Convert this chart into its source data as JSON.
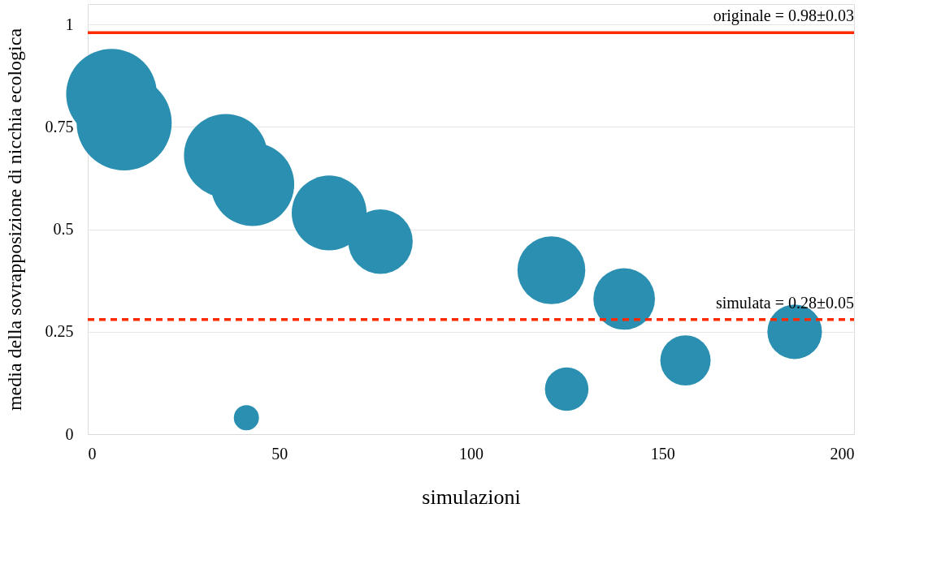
{
  "chart_data": {
    "type": "bubble",
    "xlabel": "simulazioni",
    "ylabel": "media della sovrapposizione di nicchia ecologica",
    "x": [
      6.2,
      9.5,
      36,
      43,
      63,
      76.4,
      121,
      140,
      156,
      184.5,
      125,
      41.4
    ],
    "values": [
      0.83,
      0.76,
      0.68,
      0.61,
      0.54,
      0.47,
      0.4,
      0.33,
      0.18,
      0.25,
      0.11,
      0.04
    ],
    "sizes": [
      0.91,
      1,
      0.77,
      0.77,
      0.62,
      0.46,
      0.51,
      0.42,
      0.28,
      0.33,
      0.21,
      0.07
    ],
    "color": "#2a8fb0",
    "xlim": [
      0,
      200
    ],
    "xticks": [
      0,
      50,
      100,
      150,
      200
    ],
    "ylim": [
      0,
      1.05
    ],
    "yticks": [
      0,
      0.25,
      0.5,
      0.75,
      1
    ],
    "grid": "y",
    "ref_lines": [
      {
        "axis": "y",
        "value": 0.98,
        "label": "originale = 0.98±0.03",
        "color": "#ff2a00",
        "line_style": "solid"
      },
      {
        "axis": "y",
        "value": 0.28,
        "label": "simulata = 0.28±0.05",
        "color": "#ff2a00",
        "line_style": "dashed"
      }
    ]
  }
}
